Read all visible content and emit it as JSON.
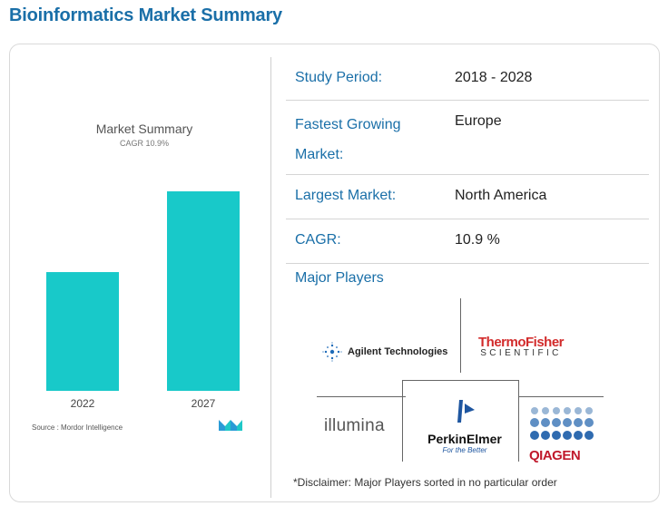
{
  "page": {
    "title": "Bioinformatics Market Summary"
  },
  "chart": {
    "title": "Market Summary",
    "subtitle": "CAGR 10.9%",
    "source": "Source : Mordor Intelligence",
    "bar_color": "#18c9c9"
  },
  "chart_data": {
    "type": "bar",
    "title": "Market Summary",
    "subtitle": "CAGR 10.9%",
    "categories": [
      "2022",
      "2027"
    ],
    "values": [
      100,
      168
    ],
    "xlabel": "",
    "ylabel": "",
    "ylim": [
      0,
      168
    ],
    "grid": false
  },
  "summary": {
    "study_period": {
      "label": "Study Period:",
      "value": "2018 - 2028"
    },
    "fastest_growing": {
      "label": "Fastest Growing Market:",
      "value": "Europe"
    },
    "largest_market": {
      "label": "Largest Market:",
      "value": "North America"
    },
    "cagr": {
      "label": "CAGR:",
      "value": "10.9 %"
    },
    "major_players_label": "Major Players"
  },
  "players": {
    "agilent": "Agilent Technologies",
    "thermo_name": "ThermoFisher",
    "thermo_sub": "SCIENTIFIC",
    "illumina": "illumina",
    "perkin_name": "PerkinElmer",
    "perkin_tag": "For the Better",
    "qiagen": "QIAGEN"
  },
  "disclaimer": "*Disclaimer: Major Players sorted in no particular order",
  "colors": {
    "accent": "#1a6fa8",
    "bar": "#18c9c9"
  }
}
